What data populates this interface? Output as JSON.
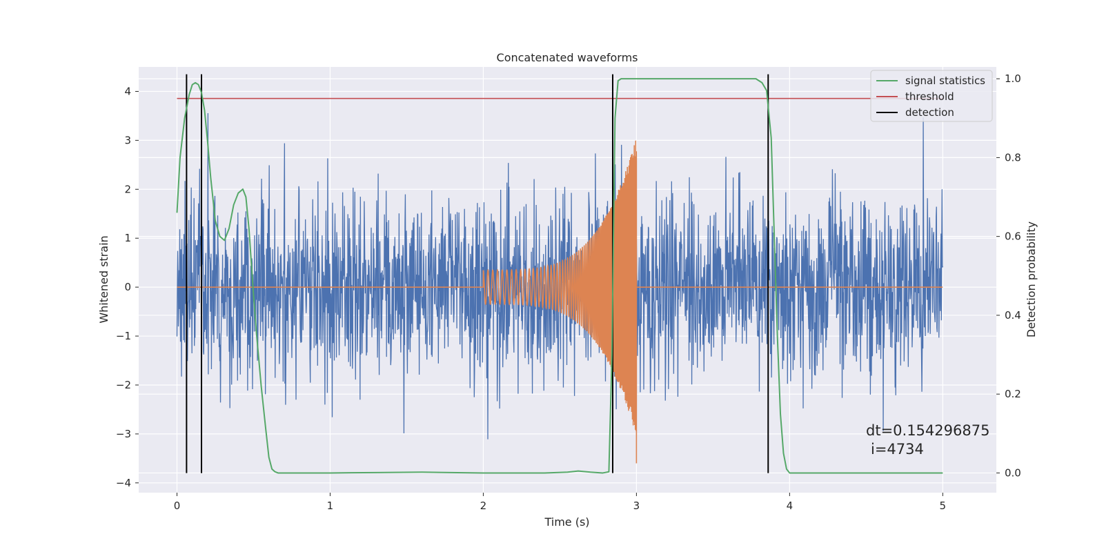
{
  "chart_data": {
    "type": "line",
    "title": "Concatenated waveforms",
    "xlabel": "Time (s)",
    "ylabel": "Whitened strain",
    "y2label": "Detection probability",
    "xlim": [
      -0.25,
      5.35
    ],
    "ylim": [
      -4.2,
      4.5
    ],
    "y2lim": [
      -0.05,
      1.03
    ],
    "xticks": [
      0,
      1,
      2,
      3,
      4,
      5
    ],
    "yticks": [
      -4,
      -3,
      -2,
      -1,
      0,
      1,
      2,
      3,
      4
    ],
    "y2ticks": [
      0.0,
      0.2,
      0.4,
      0.6,
      0.8,
      1.0
    ],
    "xtick_labels": [
      "0",
      "1",
      "2",
      "3",
      "4",
      "5"
    ],
    "ytick_labels": [
      "−4",
      "−3",
      "−2",
      "−1",
      "0",
      "1",
      "2",
      "3",
      "4"
    ],
    "y2tick_labels": [
      "0.0",
      "0.2",
      "0.4",
      "0.6",
      "0.8",
      "1.0"
    ],
    "grid": true,
    "legend_position": "top-right",
    "strain": {
      "x_start": 0,
      "x_end": 5,
      "sigma": 0.95,
      "clip": [
        -3.8,
        3.65
      ],
      "color": "#4c72b0"
    },
    "template": {
      "x_start": 0,
      "x_end": 5,
      "chirp_start": 2.0,
      "chirp_end": 3.0,
      "amp_start": 0.35,
      "amp_end": 3.05,
      "f_start": 32,
      "f_end": 220,
      "color": "#dd8452"
    },
    "series": [
      {
        "name": "signal statistics",
        "axis": "right",
        "color": "#55a868",
        "x": [
          0,
          0.02,
          0.05,
          0.08,
          0.1,
          0.12,
          0.14,
          0.16,
          0.18,
          0.2,
          0.22,
          0.25,
          0.28,
          0.31,
          0.34,
          0.37,
          0.4,
          0.43,
          0.45,
          0.47,
          0.5,
          0.52,
          0.55,
          0.58,
          0.6,
          0.62,
          0.64,
          0.66,
          0.7,
          1.0,
          1.3,
          1.6,
          2.0,
          2.4,
          2.55,
          2.62,
          2.7,
          2.78,
          2.82,
          2.84,
          2.86,
          2.88,
          2.9,
          3.2,
          3.6,
          3.78,
          3.82,
          3.85,
          3.88,
          3.9,
          3.92,
          3.94,
          3.96,
          3.98,
          4.0,
          4.2,
          4.6,
          5.0
        ],
        "values": [
          0.66,
          0.8,
          0.9,
          0.96,
          0.985,
          0.99,
          0.985,
          0.965,
          0.92,
          0.84,
          0.75,
          0.64,
          0.6,
          0.59,
          0.62,
          0.68,
          0.71,
          0.72,
          0.7,
          0.62,
          0.45,
          0.35,
          0.22,
          0.11,
          0.04,
          0.01,
          0.003,
          0.0,
          0.0,
          0.0,
          0.001,
          0.002,
          0.0,
          0.0,
          0.002,
          0.005,
          0.002,
          0.0,
          0.003,
          0.3,
          0.9,
          0.995,
          1.0,
          1.0,
          1.0,
          1.0,
          0.99,
          0.97,
          0.85,
          0.6,
          0.35,
          0.15,
          0.05,
          0.01,
          0.0,
          0.0,
          0.0,
          0.0
        ]
      },
      {
        "name": "threshold",
        "axis": "right",
        "color": "#c44e52",
        "x": [
          0,
          5
        ],
        "values": [
          0.95,
          0.95
        ]
      },
      {
        "name": "detection",
        "axis": "left",
        "color": "#000000",
        "x": [
          0.0625,
          0.16,
          2.845,
          3.86
        ],
        "y_range": [
          -3.8,
          4.35
        ]
      }
    ],
    "annotation": {
      "line1": "dt=0.154296875",
      "line2": "i=4734"
    }
  }
}
